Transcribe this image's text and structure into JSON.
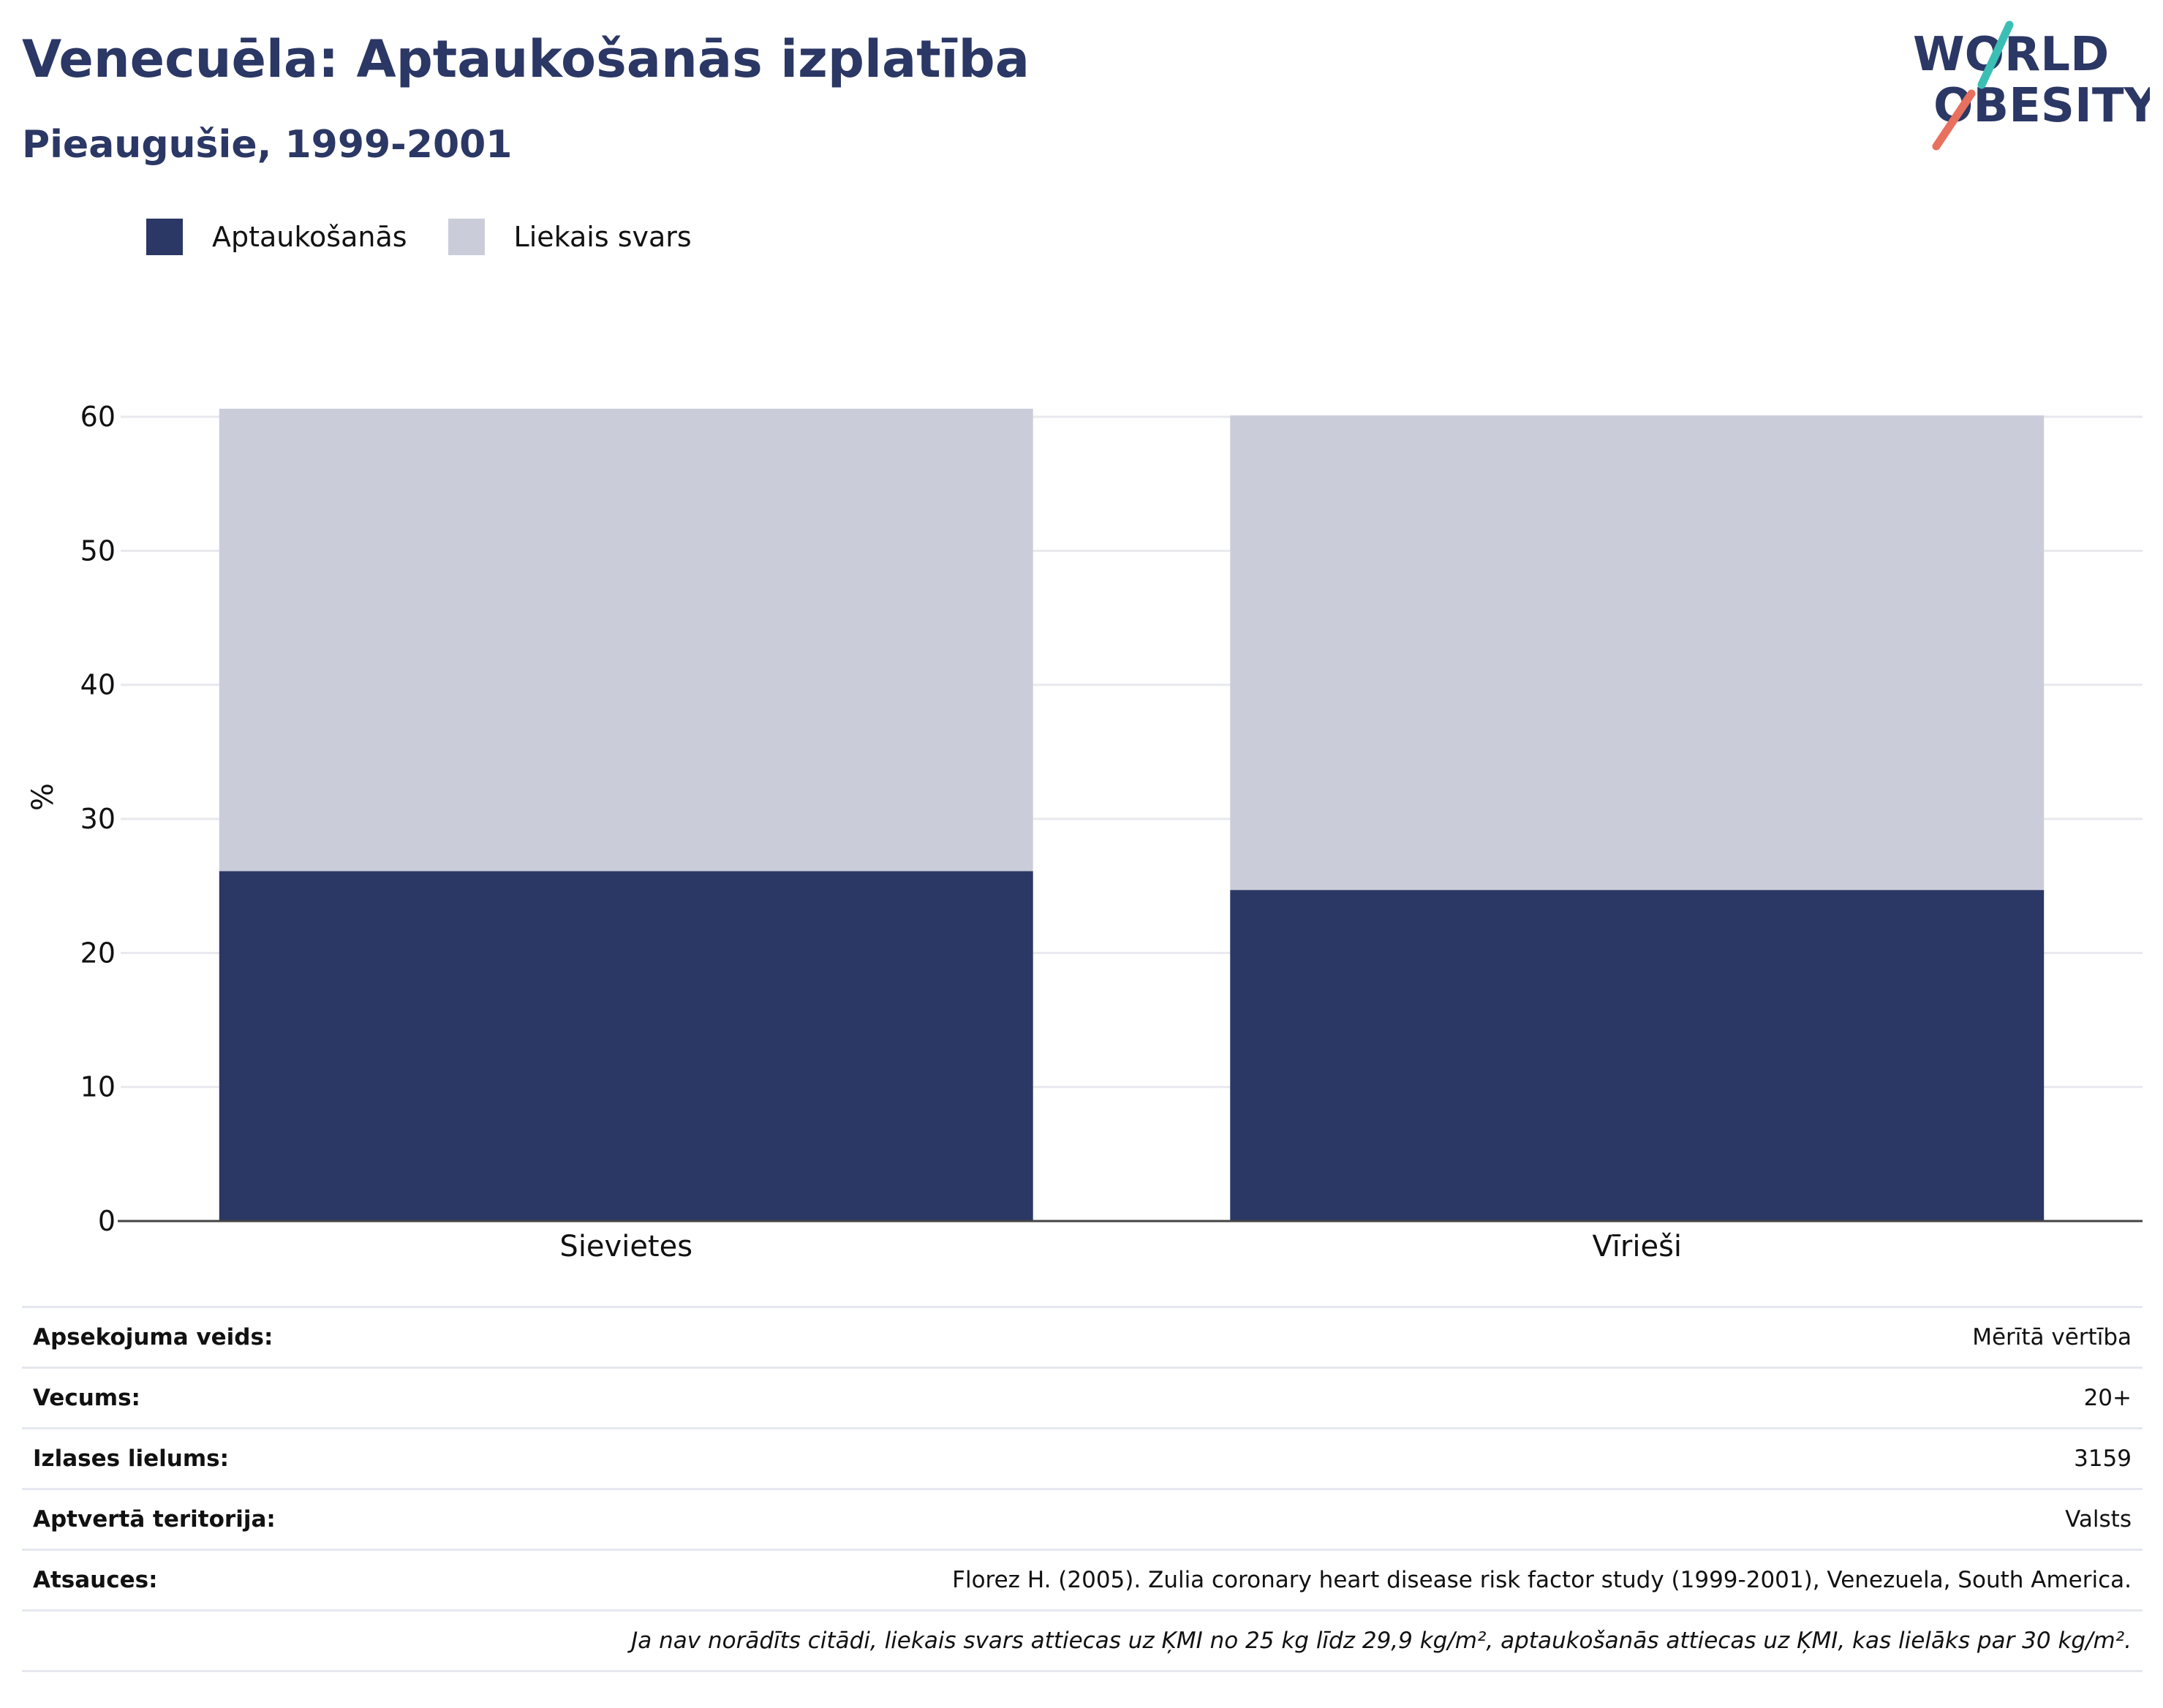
{
  "header": {
    "title": "Venecuēla: Aptaukošanās izplatība",
    "subtitle": "Pieaugušie, 1999-2001"
  },
  "logo": {
    "line1": "WORLD",
    "line2": "OBESITY",
    "accent_teal": "#3bbfb5",
    "accent_coral": "#e8705f",
    "text_color": "#2b3764"
  },
  "legend": {
    "items": [
      {
        "label": "Aptaukošanās",
        "color": "#2b3764"
      },
      {
        "label": "Liekais svars",
        "color": "#cacdd9"
      }
    ]
  },
  "chart_data": {
    "type": "bar",
    "stacked": true,
    "categories": [
      "Sievietes",
      "Vīrieši"
    ],
    "series": [
      {
        "name": "Aptaukošanās",
        "color": "#2b3764",
        "values": [
          26.1,
          24.7
        ]
      },
      {
        "name": "Liekais svars",
        "color": "#cacdd9",
        "values": [
          34.5,
          35.4
        ]
      }
    ],
    "ylabel": "%",
    "ylim": [
      0,
      60
    ],
    "yticks": [
      "0",
      "10",
      "20",
      "30",
      "40",
      "50",
      "60"
    ],
    "grid": true,
    "legend_position": "top-left"
  },
  "info": {
    "rows": [
      {
        "label": "Apsekojuma veids:",
        "value": "Mērītā vērtība"
      },
      {
        "label": "Vecums:",
        "value": "20+"
      },
      {
        "label": "Izlases lielums:",
        "value": "3159"
      },
      {
        "label": "Aptvertā teritorija:",
        "value": "Valsts"
      },
      {
        "label": "Atsauces:",
        "value": "Florez H. (2005). Zulia coronary heart disease risk factor study (1999-2001), Venezuela, South America."
      }
    ],
    "note": "Ja nav norādīts citādi, liekais svars attiecas uz ĶMI no 25 kg līdz 29,9 kg/m², aptaukošanās attiecas uz ĶMI, kas lielāks par 30 kg/m²."
  }
}
